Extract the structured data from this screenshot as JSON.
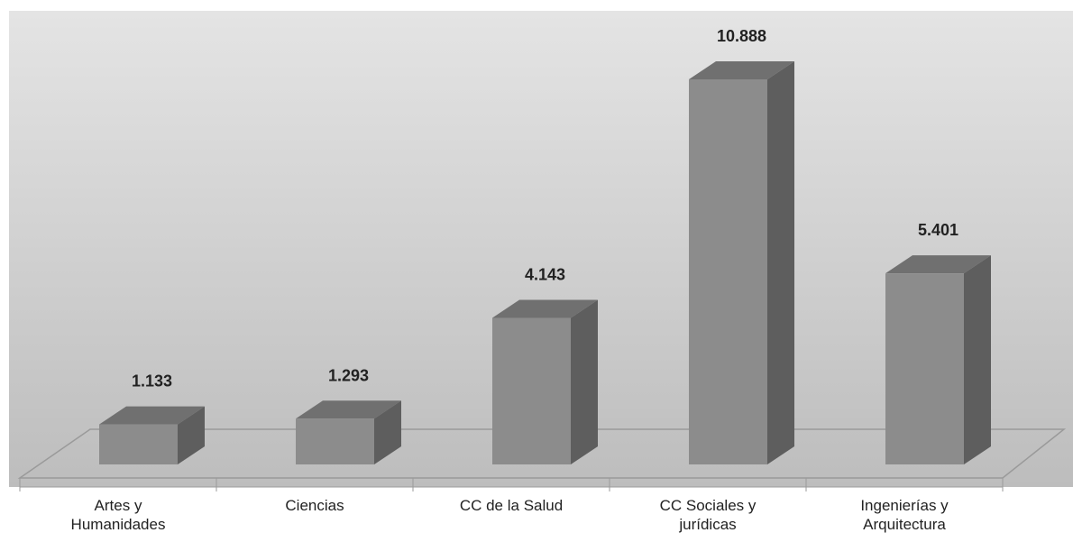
{
  "chart_data": {
    "type": "bar3d",
    "categories": [
      "Artes y Humanidades",
      "Ciencias",
      "CC de la Salud",
      "CC Sociales y jurídicas",
      "Ingenierías y Arquitectura"
    ],
    "values": [
      1133,
      1293,
      4143,
      10888,
      5401
    ],
    "value_labels": [
      "1.133",
      "1.293",
      "4.143",
      "10.888",
      "5.401"
    ],
    "color": "#8c8c8c"
  }
}
